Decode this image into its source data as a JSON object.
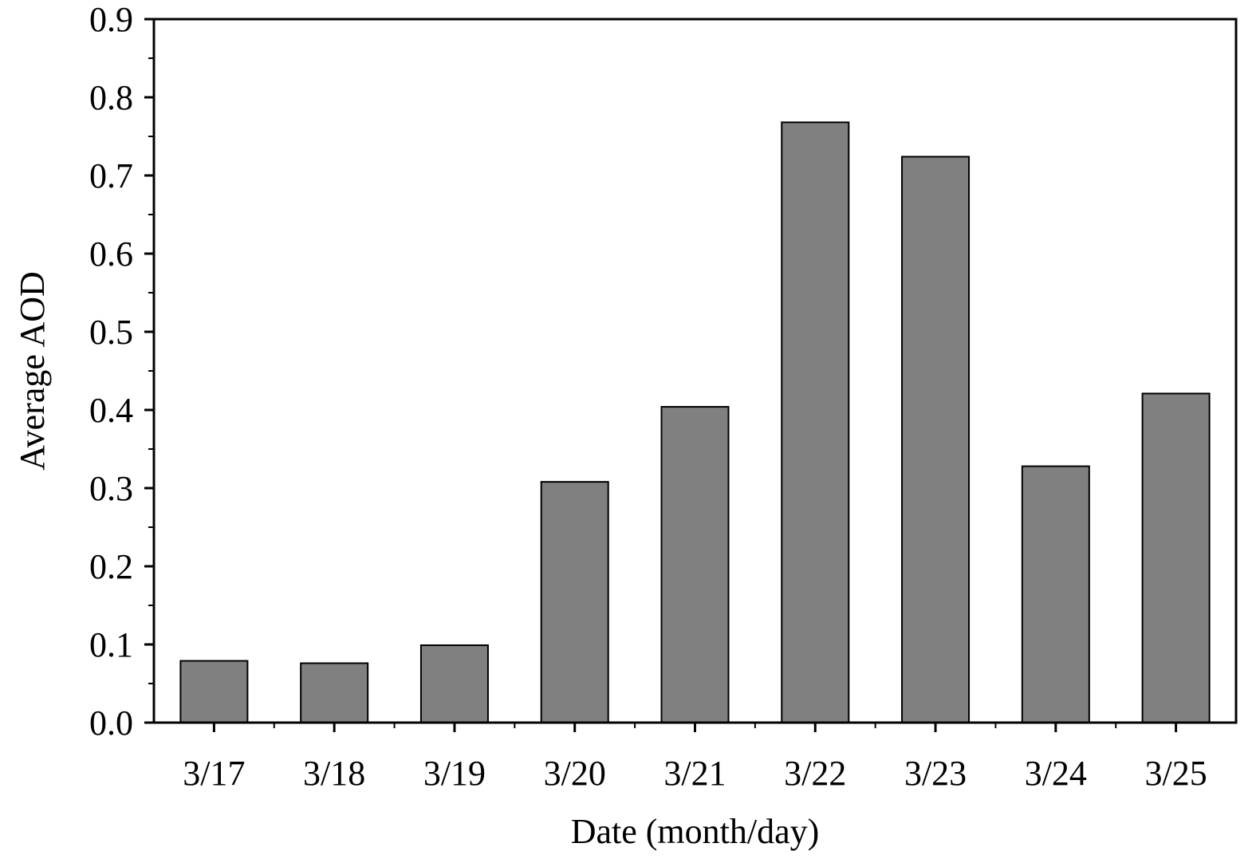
{
  "chart_data": {
    "type": "bar",
    "title": "",
    "xlabel": "Date (month/day)",
    "ylabel": "Average AOD",
    "categories": [
      "3/17",
      "3/18",
      "3/19",
      "3/20",
      "3/21",
      "3/22",
      "3/23",
      "3/24",
      "3/25"
    ],
    "values": [
      0.079,
      0.076,
      0.099,
      0.308,
      0.404,
      0.768,
      0.724,
      0.328,
      0.421
    ],
    "ylim": [
      0,
      0.9
    ],
    "yticks": [
      "0.0",
      "0.1",
      "0.2",
      "0.3",
      "0.4",
      "0.5",
      "0.6",
      "0.7",
      "0.8",
      "0.9"
    ],
    "grid": false,
    "legend": "none",
    "bar_color": "#808080",
    "edge_color": "#000000"
  }
}
